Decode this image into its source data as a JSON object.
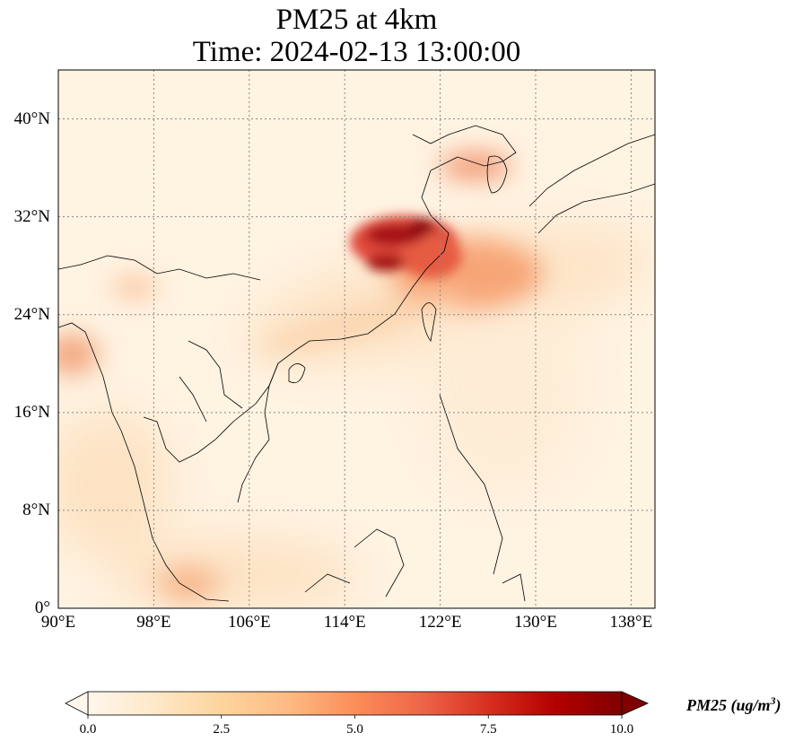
{
  "title": {
    "line1": "PM25 at 4km",
    "line2": "Time: 2024-02-13 13:00:00"
  },
  "map": {
    "lon_range": [
      90,
      140
    ],
    "lat_range": [
      0,
      44
    ],
    "lat_ticks": [
      "40°N",
      "32°N",
      "24°N",
      "16°N",
      "8°N",
      "0°"
    ],
    "lon_ticks": [
      "90°E",
      "98°E",
      "106°E",
      "114°E",
      "122°E",
      "130°E",
      "138°E"
    ],
    "gridlines": "dotted",
    "colormap": "OrRd",
    "variable": "PM25",
    "units": "ug/m3"
  },
  "colorbar": {
    "ticks": [
      "0.0",
      "2.5",
      "5.0",
      "7.5",
      "10.0"
    ],
    "range": [
      0.0,
      10.0
    ],
    "extend": "both",
    "label": "PM25",
    "label_units": "(ug/m",
    "label_units_exp": "3",
    "label_units_close": ")",
    "colors": [
      "#fff7ec",
      "#fee8c8",
      "#fdd49e",
      "#fdbb84",
      "#fc8d59",
      "#ef6548",
      "#d7301f",
      "#b30000",
      "#7f0000"
    ]
  }
}
